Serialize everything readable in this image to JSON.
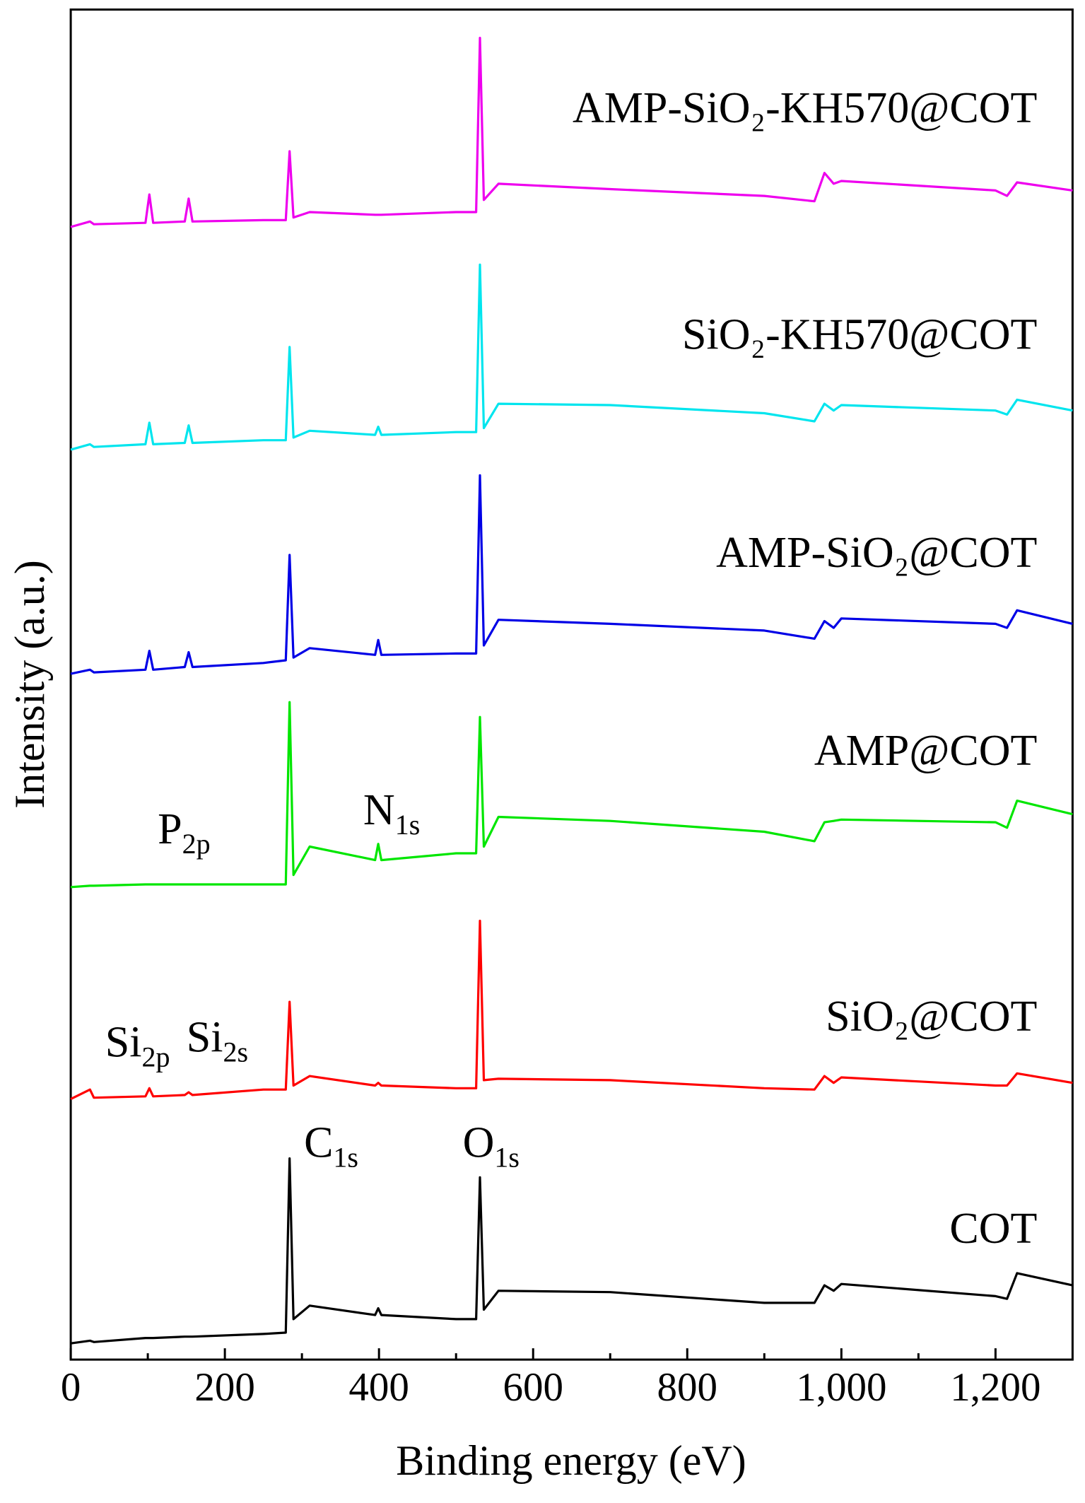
{
  "chart_data": {
    "type": "line",
    "xlabel": "Binding energy (eV)",
    "ylabel": "Intensity (a.u.)",
    "x": [
      0,
      25,
      30,
      97,
      102,
      107,
      148,
      153,
      158,
      250,
      279,
      284,
      289,
      310,
      395,
      399,
      403,
      500,
      526,
      531,
      536,
      555,
      700,
      900,
      965,
      978,
      990,
      1000,
      1200,
      1215,
      1228,
      1300
    ],
    "series": [
      {
        "name": "COT",
        "color": "#000000",
        "values": [
          1.2,
          1.4,
          1.3,
          1.6,
          1.6,
          1.6,
          1.7,
          1.7,
          1.7,
          1.9,
          2.0,
          14.9,
          3.0,
          4.0,
          3.3,
          3.8,
          3.3,
          3.0,
          3.0,
          13.5,
          3.7,
          5.1,
          5.0,
          4.2,
          4.2,
          5.5,
          5.1,
          5.6,
          4.7,
          4.5,
          6.4,
          5.5
        ]
      },
      {
        "name": "SiO₂@COT",
        "color": "#ff0000",
        "values": [
          19.3,
          20.0,
          19.4,
          19.5,
          20.1,
          19.5,
          19.6,
          19.8,
          19.6,
          20.0,
          20.0,
          26.5,
          20.3,
          21.0,
          20.3,
          20.5,
          20.3,
          20.1,
          20.1,
          32.5,
          20.7,
          20.8,
          20.7,
          20.1,
          20.0,
          21.0,
          20.5,
          20.9,
          20.3,
          20.3,
          21.2,
          20.5
        ]
      },
      {
        "name": "AMP@COT",
        "color": "#00e600",
        "values": [
          35.0,
          35.1,
          35.1,
          35.2,
          35.2,
          35.2,
          35.2,
          35.2,
          35.2,
          35.2,
          35.2,
          48.7,
          35.9,
          38.0,
          37.0,
          38.2,
          37.0,
          37.5,
          37.5,
          47.6,
          38.0,
          40.2,
          39.9,
          39.1,
          38.4,
          39.8,
          39.9,
          40.0,
          39.8,
          39.4,
          41.4,
          40.4
        ]
      },
      {
        "name": "AMP-SiO₂@COT",
        "color": "#0000e6",
        "values": [
          50.8,
          51.1,
          50.9,
          51.1,
          52.5,
          51.1,
          51.3,
          52.4,
          51.3,
          51.6,
          51.8,
          59.6,
          52.0,
          52.7,
          52.2,
          53.3,
          52.2,
          52.3,
          52.3,
          65.5,
          52.9,
          54.8,
          54.5,
          54.0,
          53.4,
          54.7,
          54.2,
          54.9,
          54.5,
          54.2,
          55.5,
          54.5
        ]
      },
      {
        "name": "SiO₂-KH570@COT",
        "color": "#00e5ee",
        "values": [
          67.4,
          67.8,
          67.6,
          67.8,
          69.4,
          67.8,
          67.9,
          69.2,
          67.9,
          68.1,
          68.1,
          75.0,
          68.3,
          68.8,
          68.5,
          69.1,
          68.5,
          68.7,
          68.7,
          81.1,
          69.0,
          70.8,
          70.7,
          70.1,
          69.5,
          70.8,
          70.3,
          70.7,
          70.3,
          70.0,
          71.1,
          70.3
        ]
      },
      {
        "name": "AMP-SiO₂-KH570@COT",
        "color": "#ee00ee",
        "values": [
          83.9,
          84.3,
          84.1,
          84.2,
          86.3,
          84.2,
          84.3,
          86.0,
          84.3,
          84.4,
          84.4,
          89.5,
          84.6,
          85.0,
          84.8,
          84.8,
          84.8,
          85.0,
          85.0,
          97.9,
          85.9,
          87.1,
          86.7,
          86.2,
          85.8,
          87.9,
          87.1,
          87.3,
          86.6,
          86.2,
          87.2,
          86.6
        ]
      }
    ],
    "annotations": [
      {
        "text": "P",
        "sub": "2p"
      },
      {
        "text": "N",
        "sub": "1s"
      },
      {
        "text": "Si",
        "sub": "2p"
      },
      {
        "text": "Si",
        "sub": "2s"
      },
      {
        "text": "C",
        "sub": "1s"
      },
      {
        "text": "O",
        "sub": "1s"
      }
    ],
    "xlim": [
      0,
      1300
    ],
    "xticks": [
      0,
      200,
      400,
      600,
      800,
      {
        "value": 1000,
        "label": "1,000"
      },
      {
        "value": 1200,
        "label": "1,200"
      }
    ],
    "xminorticks": [
      100,
      300,
      500,
      700,
      900,
      1100
    ],
    "ylim": [
      0,
      100
    ]
  }
}
